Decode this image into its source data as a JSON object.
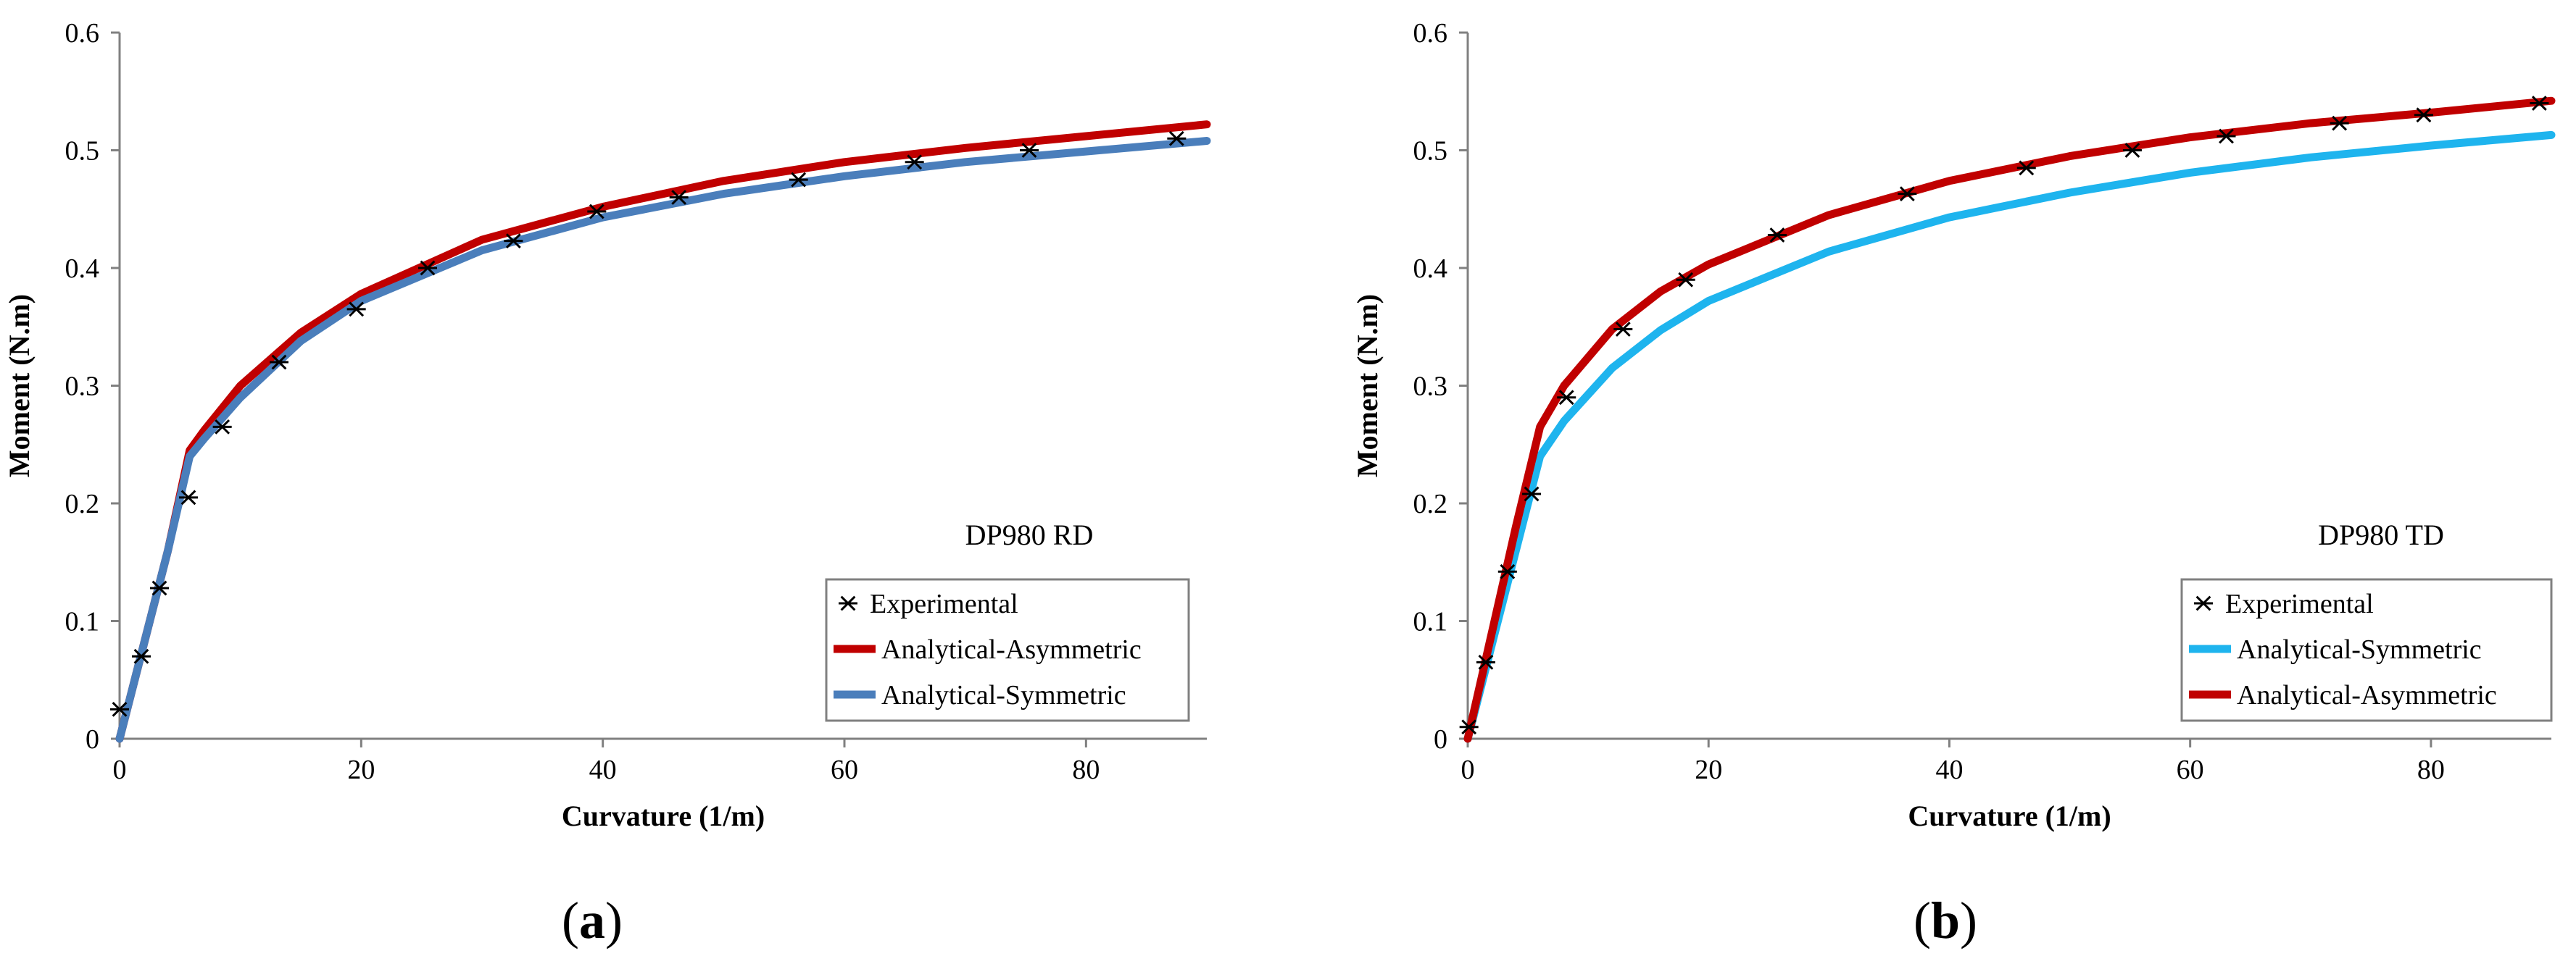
{
  "panels": [
    {
      "label_open": "(",
      "label_letter": "a",
      "label_close": ")"
    },
    {
      "label_open": "(",
      "label_letter": "b",
      "label_close": ")"
    }
  ],
  "colors": {
    "red": "#C00000",
    "blue": "#4A7EBB",
    "cyan": "#1EB4EE",
    "marker": "#000000",
    "axis": "#808080"
  },
  "chart_data": [
    {
      "type": "line",
      "annotation": "DP980 RD",
      "xlabel": "Curvature (1/m)",
      "ylabel": "Moment (N.m)",
      "xlim": [
        0,
        90
      ],
      "ylim": [
        0,
        0.6
      ],
      "x_ticks": [
        "0",
        "20",
        "40",
        "60",
        "80"
      ],
      "y_ticks": [
        "0",
        "0.1",
        "0.2",
        "0.3",
        "0.4",
        "0.5",
        "0.6"
      ],
      "legend": [
        "Experimental",
        "Analytical-Asymmetric",
        "Analytical-Symmetric"
      ],
      "legend_position": "bottom-right",
      "series": [
        {
          "name": "Experimental",
          "kind": "marker",
          "color": "#000000",
          "x": [
            0,
            1.8,
            3.3,
            5.7,
            8.5,
            13.2,
            19.6,
            25.5,
            32.6,
            39.5,
            46.3,
            56.2,
            65.8,
            75.3,
            87.5
          ],
          "y": [
            0.025,
            0.07,
            0.128,
            0.205,
            0.265,
            0.32,
            0.365,
            0.4,
            0.423,
            0.448,
            0.46,
            0.475,
            0.49,
            0.5,
            0.51
          ]
        },
        {
          "name": "Analytical-Asymmetric",
          "kind": "line",
          "color": "#C00000",
          "x": [
            0,
            2,
            4,
            5.8,
            7,
            10,
            15,
            20,
            30,
            40,
            50,
            60,
            70,
            80,
            90
          ],
          "y": [
            0,
            0.08,
            0.16,
            0.245,
            0.262,
            0.3,
            0.345,
            0.378,
            0.424,
            0.452,
            0.474,
            0.49,
            0.502,
            0.512,
            0.522
          ]
        },
        {
          "name": "Analytical-Symmetric",
          "kind": "line",
          "color": "#4A7EBB",
          "x": [
            0,
            2,
            4,
            5.8,
            7,
            10,
            15,
            20,
            30,
            40,
            50,
            60,
            70,
            80,
            90
          ],
          "y": [
            0,
            0.08,
            0.16,
            0.24,
            0.255,
            0.29,
            0.338,
            0.372,
            0.415,
            0.443,
            0.463,
            0.478,
            0.49,
            0.499,
            0.508
          ]
        }
      ]
    },
    {
      "type": "line",
      "annotation": "DP980 TD",
      "xlabel": "Curvature (1/m)",
      "ylabel": "Moment (N.m)",
      "xlim": [
        0,
        90
      ],
      "ylim": [
        0,
        0.6
      ],
      "x_ticks": [
        "0",
        "20",
        "40",
        "60",
        "80"
      ],
      "y_ticks": [
        "0",
        "0.1",
        "0.2",
        "0.3",
        "0.4",
        "0.5",
        "0.6"
      ],
      "legend": [
        "Experimental",
        "Analytical-Symmetric",
        "Analytical-Asymmetric"
      ],
      "legend_position": "bottom-right",
      "series": [
        {
          "name": "Experimental",
          "kind": "marker",
          "color": "#000000",
          "x": [
            0.1,
            1.5,
            3.3,
            5.3,
            8.2,
            12.9,
            18.1,
            25.7,
            36.5,
            46.4,
            55.2,
            63,
            72.4,
            79.4,
            89
          ],
          "y": [
            0.01,
            0.065,
            0.142,
            0.208,
            0.29,
            0.348,
            0.39,
            0.428,
            0.463,
            0.485,
            0.5,
            0.512,
            0.523,
            0.53,
            0.54
          ]
        },
        {
          "name": "Analytical-Symmetric",
          "kind": "line",
          "color": "#1EB4EE",
          "x": [
            0,
            2,
            4,
            6,
            8,
            12,
            16,
            20,
            30,
            40,
            50,
            60,
            70,
            80,
            90
          ],
          "y": [
            0,
            0.08,
            0.16,
            0.24,
            0.27,
            0.315,
            0.347,
            0.372,
            0.414,
            0.443,
            0.464,
            0.481,
            0.494,
            0.504,
            0.513
          ]
        },
        {
          "name": "Analytical-Asymmetric",
          "kind": "line",
          "color": "#C00000",
          "x": [
            0,
            2,
            4,
            6,
            8,
            12,
            16,
            20,
            30,
            40,
            50,
            60,
            70,
            80,
            90
          ],
          "y": [
            0,
            0.09,
            0.18,
            0.265,
            0.3,
            0.348,
            0.38,
            0.403,
            0.445,
            0.474,
            0.495,
            0.511,
            0.523,
            0.532,
            0.542
          ]
        }
      ]
    }
  ]
}
